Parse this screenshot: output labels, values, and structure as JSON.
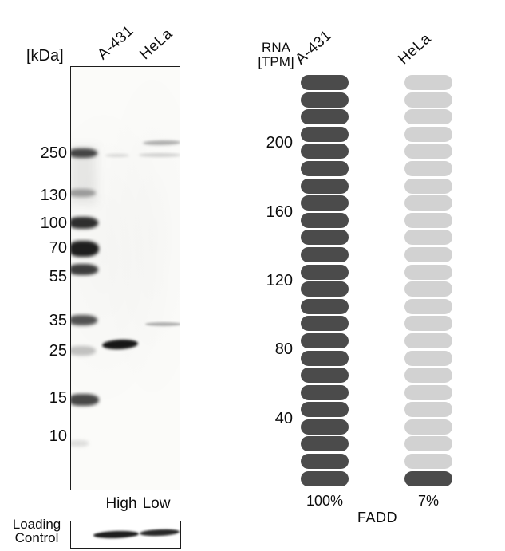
{
  "western_blot": {
    "kda_label": "[kDa]",
    "lane_labels": [
      "A-431",
      "HeLa"
    ],
    "marker_labels": [
      "250",
      "130",
      "100",
      "70",
      "55",
      "35",
      "25",
      "15",
      "10"
    ],
    "expression_labels": [
      "High",
      "Low"
    ],
    "loading_control_line1": "Loading",
    "loading_control_line2": "Control",
    "observed_bands": [
      {
        "lane": "A-431",
        "kda": 27,
        "intensity": "strong"
      },
      {
        "lane": "HeLa",
        "kda": 33,
        "intensity": "faint"
      },
      {
        "lane": "HeLa",
        "kda": 270,
        "intensity": "faint"
      },
      {
        "lane": "HeLa",
        "kda": 250,
        "intensity": "very-faint"
      },
      {
        "lane": "A-431",
        "kda": 250,
        "intensity": "very-faint"
      }
    ]
  },
  "chart_data": {
    "type": "segmented-bar",
    "title": "FADD",
    "ylabel_line1": "RNA",
    "ylabel_line2": "[TPM]",
    "categories": [
      "A-431",
      "HeLa"
    ],
    "yticks": [
      "200",
      "160",
      "120",
      "80",
      "40"
    ],
    "ylim": [
      0,
      240
    ],
    "segments_per_bar": 24,
    "tpm_per_segment": 10,
    "series": [
      {
        "name": "A-431",
        "filled_segments": 24,
        "value_tpm": 240,
        "percent_label": "100%"
      },
      {
        "name": "HeLa",
        "filled_segments": 1,
        "value_tpm": 17,
        "percent_label": "7%"
      }
    ],
    "colors": {
      "filled": "#4b4b4b",
      "empty": "#d2d2d2"
    },
    "legend": null,
    "grid": false
  }
}
